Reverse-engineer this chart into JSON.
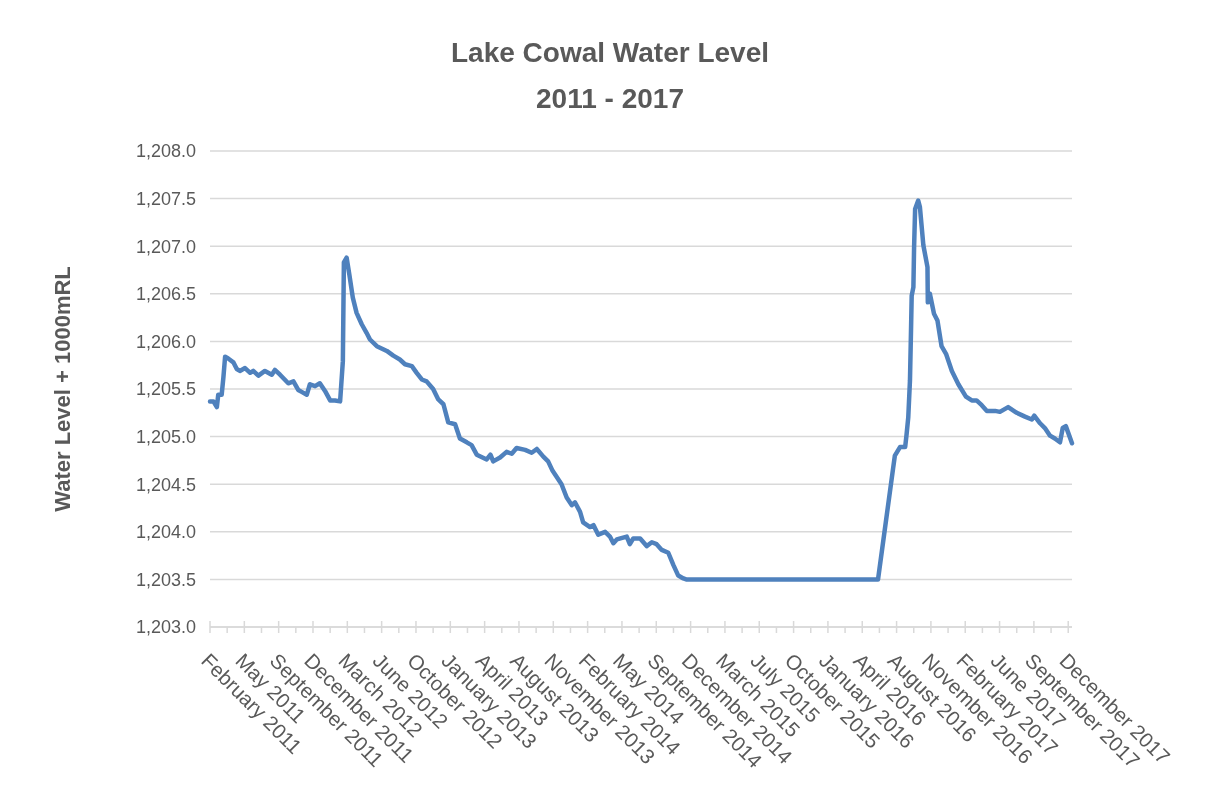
{
  "chart_data": {
    "type": "line",
    "title": "Lake Cowal Water Level\n2011 - 2017",
    "ylabel": "Water Level + 1000mRL",
    "x": [
      "2011-02-15",
      "2011-02-25",
      "2011-03-07",
      "2011-03-11",
      "2011-03-21",
      "2011-03-26",
      "2011-03-31",
      "2011-04-09",
      "2011-04-24",
      "2011-05-04",
      "2011-05-13",
      "2011-05-28",
      "2011-06-12",
      "2011-06-21",
      "2011-07-06",
      "2011-07-25",
      "2011-08-14",
      "2011-08-23",
      "2011-09-07",
      "2011-10-01",
      "2011-10-16",
      "2011-10-30",
      "2011-11-09",
      "2011-11-24",
      "2011-12-03",
      "2011-12-18",
      "2012-01-01",
      "2012-01-16",
      "2012-01-31",
      "2012-02-14",
      "2012-02-29",
      "2012-03-08",
      "2012-03-11",
      "2012-03-19",
      "2012-03-27",
      "2012-04-06",
      "2012-04-17",
      "2012-05-02",
      "2012-05-16",
      "2012-05-26",
      "2012-06-15",
      "2012-07-14",
      "2012-08-02",
      "2012-08-21",
      "2012-09-05",
      "2012-09-25",
      "2012-10-09",
      "2012-10-24",
      "2012-11-07",
      "2012-11-26",
      "2012-12-11",
      "2012-12-26",
      "2013-01-09",
      "2013-01-29",
      "2013-02-12",
      "2013-03-04",
      "2013-03-18",
      "2013-04-02",
      "2013-05-01",
      "2013-05-12",
      "2013-05-20",
      "2013-06-09",
      "2013-06-28",
      "2013-07-13",
      "2013-07-27",
      "2013-08-21",
      "2013-09-09",
      "2013-09-24",
      "2013-10-13",
      "2013-10-27",
      "2013-11-09",
      "2013-12-05",
      "2013-12-20",
      "2014-01-04",
      "2014-01-13",
      "2014-01-28",
      "2014-02-06",
      "2014-02-26",
      "2014-03-08",
      "2014-03-22",
      "2014-04-11",
      "2014-04-25",
      "2014-05-05",
      "2014-05-15",
      "2014-06-13",
      "2014-06-22",
      "2014-07-02",
      "2014-07-22",
      "2014-08-10",
      "2014-08-25",
      "2014-09-08",
      "2014-09-23",
      "2014-10-12",
      "2014-10-27",
      "2014-11-10",
      "2014-11-25",
      "2014-12-03",
      "2016-06-14",
      "2016-07-28",
      "2016-08-02",
      "2016-08-17",
      "2016-09-01",
      "2016-09-05",
      "2016-09-10",
      "2016-09-15",
      "2016-09-18",
      "2016-09-20",
      "2016-09-25",
      "2016-09-27",
      "2016-09-30",
      "2016-10-09",
      "2016-10-14",
      "2016-10-24",
      "2016-11-05",
      "2016-11-06",
      "2016-11-12",
      "2016-11-24",
      "2016-12-04",
      "2016-12-16",
      "2016-12-29",
      "2017-01-15",
      "2017-02-03",
      "2017-02-25",
      "2017-03-14",
      "2017-03-28",
      "2017-04-12",
      "2017-04-27",
      "2017-05-21",
      "2017-06-04",
      "2017-06-28",
      "2017-07-23",
      "2017-08-16",
      "2017-09-05",
      "2017-09-12",
      "2017-09-29",
      "2017-10-13",
      "2017-10-28",
      "2017-11-11",
      "2017-11-26",
      "2017-12-04",
      "2017-12-13",
      "2017-12-31"
    ],
    "series": [
      {
        "color": "#4f81bd",
        "values": [
          1205.37,
          1205.37,
          1205.31,
          1205.44,
          1205.44,
          1205.62,
          1205.84,
          1205.82,
          1205.78,
          1205.71,
          1205.69,
          1205.72,
          1205.67,
          1205.69,
          1205.64,
          1205.69,
          1205.65,
          1205.7,
          1205.65,
          1205.56,
          1205.58,
          1205.49,
          1205.47,
          1205.44,
          1205.55,
          1205.53,
          1205.56,
          1205.48,
          1205.38,
          1205.38,
          1205.37,
          1205.79,
          1206.83,
          1206.88,
          1206.7,
          1206.46,
          1206.3,
          1206.18,
          1206.09,
          1206.02,
          1205.95,
          1205.9,
          1205.85,
          1205.81,
          1205.76,
          1205.74,
          1205.67,
          1205.6,
          1205.58,
          1205.5,
          1205.39,
          1205.34,
          1205.15,
          1205.13,
          1204.98,
          1204.94,
          1204.91,
          1204.81,
          1204.76,
          1204.81,
          1204.74,
          1204.78,
          1204.84,
          1204.82,
          1204.88,
          1204.86,
          1204.83,
          1204.87,
          1204.79,
          1204.74,
          1204.64,
          1204.5,
          1204.36,
          1204.28,
          1204.31,
          1204.21,
          1204.1,
          1204.05,
          1204.07,
          1203.97,
          1204.0,
          1203.95,
          1203.88,
          1203.92,
          1203.95,
          1203.87,
          1203.93,
          1203.93,
          1203.85,
          1203.89,
          1203.87,
          1203.81,
          1203.78,
          1203.65,
          1203.54,
          1203.51,
          1203.5,
          1203.5,
          1204.67,
          1204.8,
          1204.89,
          1204.89,
          1205.02,
          1205.2,
          1205.59,
          1206.11,
          1206.48,
          1206.57,
          1206.99,
          1207.39,
          1207.48,
          1207.41,
          1207.01,
          1206.78,
          1206.41,
          1206.5,
          1206.29,
          1206.22,
          1205.95,
          1205.87,
          1205.69,
          1205.55,
          1205.42,
          1205.38,
          1205.38,
          1205.33,
          1205.27,
          1205.27,
          1205.26,
          1205.31,
          1205.25,
          1205.21,
          1205.18,
          1205.22,
          1205.14,
          1205.09,
          1205.01,
          1204.98,
          1204.94,
          1205.09,
          1205.11,
          1204.93
        ]
      }
    ],
    "xlim": [
      "2011-02-15",
      "2017-12-31"
    ],
    "xticks": [
      {
        "value": "2011-02-15",
        "label": "February 2011"
      },
      {
        "value": "2011-04-06",
        "label": null
      },
      {
        "value": "2011-05-26",
        "label": "May 2011"
      },
      {
        "value": "2011-07-15",
        "label": null
      },
      {
        "value": "2011-09-03",
        "label": "September 2011"
      },
      {
        "value": "2011-10-23",
        "label": null
      },
      {
        "value": "2011-12-12",
        "label": "December 2011"
      },
      {
        "value": "2012-01-31",
        "label": null
      },
      {
        "value": "2012-03-21",
        "label": "March 2012"
      },
      {
        "value": "2012-05-10",
        "label": null
      },
      {
        "value": "2012-06-29",
        "label": "June 2012"
      },
      {
        "value": "2012-08-18",
        "label": null
      },
      {
        "value": "2012-10-07",
        "label": "October 2012"
      },
      {
        "value": "2012-11-26",
        "label": null
      },
      {
        "value": "2013-01-15",
        "label": "January 2013"
      },
      {
        "value": "2013-03-06",
        "label": null
      },
      {
        "value": "2013-04-25",
        "label": "April 2013"
      },
      {
        "value": "2013-06-14",
        "label": null
      },
      {
        "value": "2013-08-03",
        "label": "August 2013"
      },
      {
        "value": "2013-09-22",
        "label": null
      },
      {
        "value": "2013-11-11",
        "label": "November 2013"
      },
      {
        "value": "2013-12-31",
        "label": null
      },
      {
        "value": "2014-02-19",
        "label": "February 2014"
      },
      {
        "value": "2014-04-10",
        "label": null
      },
      {
        "value": "2014-05-30",
        "label": "May 2014"
      },
      {
        "value": "2014-07-19",
        "label": null
      },
      {
        "value": "2014-09-07",
        "label": "September 2014"
      },
      {
        "value": "2014-10-27",
        "label": null
      },
      {
        "value": "2014-12-16",
        "label": "December 2014"
      },
      {
        "value": "2015-02-04",
        "label": null
      },
      {
        "value": "2015-03-26",
        "label": "March 2015"
      },
      {
        "value": "2015-05-15",
        "label": null
      },
      {
        "value": "2015-07-04",
        "label": "July 2015"
      },
      {
        "value": "2015-08-23",
        "label": null
      },
      {
        "value": "2015-10-12",
        "label": "October 2015"
      },
      {
        "value": "2015-12-01",
        "label": null
      },
      {
        "value": "2016-01-20",
        "label": "January 2016"
      },
      {
        "value": "2016-03-10",
        "label": null
      },
      {
        "value": "2016-04-29",
        "label": "April 2016"
      },
      {
        "value": "2016-06-18",
        "label": null
      },
      {
        "value": "2016-08-07",
        "label": "August 2016"
      },
      {
        "value": "2016-09-26",
        "label": null
      },
      {
        "value": "2016-11-15",
        "label": "November 2016"
      },
      {
        "value": "2017-01-04",
        "label": null
      },
      {
        "value": "2017-02-23",
        "label": "February 2017"
      },
      {
        "value": "2017-04-14",
        "label": null
      },
      {
        "value": "2017-06-03",
        "label": "June 2017"
      },
      {
        "value": "2017-07-23",
        "label": null
      },
      {
        "value": "2017-09-11",
        "label": "September 2017"
      },
      {
        "value": "2017-10-31",
        "label": null
      },
      {
        "value": "2017-12-20",
        "label": "December 2017"
      }
    ],
    "ylim": [
      1203,
      1208
    ],
    "yticks": [
      {
        "value": 1203,
        "label": "1,203.0"
      },
      {
        "value": 1203.5,
        "label": "1,203.5"
      },
      {
        "value": 1204,
        "label": "1,204.0"
      },
      {
        "value": 1204.5,
        "label": "1,204.5"
      },
      {
        "value": 1205,
        "label": "1,205.0"
      },
      {
        "value": 1205.5,
        "label": "1,205.5"
      },
      {
        "value": 1206,
        "label": "1,206.0"
      },
      {
        "value": 1206.5,
        "label": "1,206.5"
      },
      {
        "value": 1207,
        "label": "1,207.0"
      },
      {
        "value": 1207.5,
        "label": "1,207.5"
      },
      {
        "value": 1208,
        "label": "1,208.0"
      }
    ],
    "grid": "y",
    "marker": "none",
    "line_style": "solid"
  }
}
